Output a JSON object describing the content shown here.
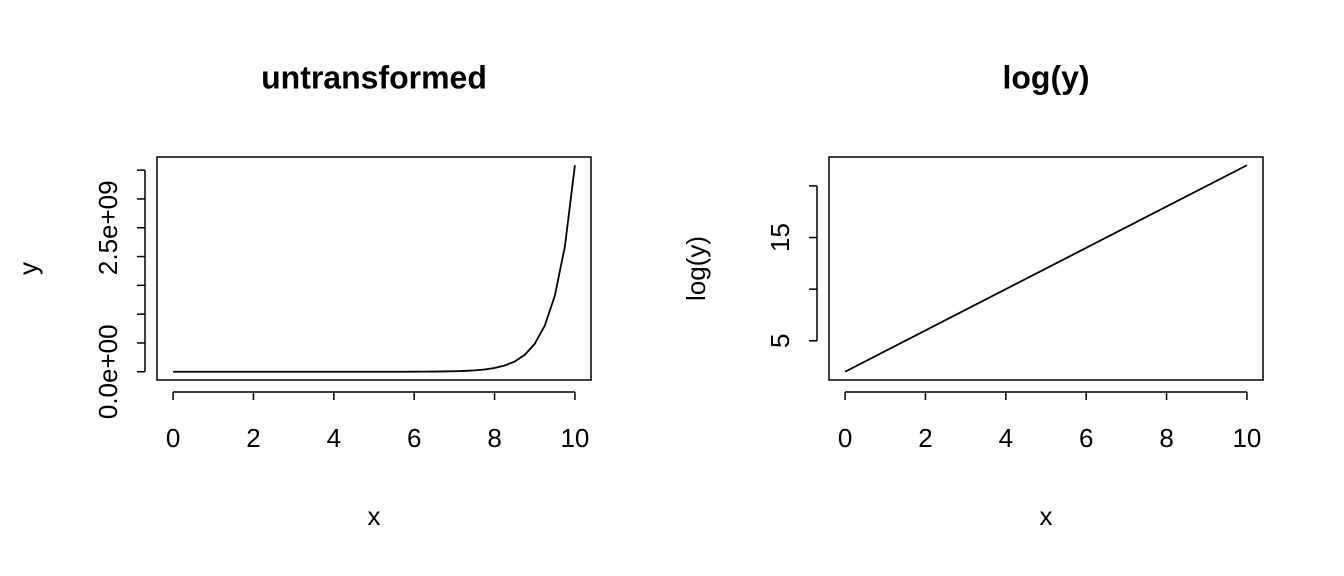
{
  "chart_data": [
    {
      "type": "line",
      "title": "untransformed",
      "xlabel": "x",
      "ylabel": "y",
      "color": "#000000",
      "x": [
        0,
        0.25,
        0.5,
        0.75,
        1,
        1.25,
        1.5,
        1.75,
        2,
        2.25,
        2.5,
        2.75,
        3,
        3.25,
        3.5,
        3.75,
        4,
        4.25,
        4.5,
        4.75,
        5,
        5.25,
        5.5,
        5.75,
        6,
        6.25,
        6.5,
        6.75,
        7,
        7.25,
        7.5,
        7.75,
        8,
        8.25,
        8.5,
        8.75,
        9,
        9.25,
        9.5,
        9.75,
        10
      ],
      "values": [
        7.389,
        12.18,
        20.09,
        33.12,
        54.6,
        90.02,
        148.4,
        244.7,
        403.4,
        665.1,
        1096.6,
        1808,
        2981,
        4915,
        8103,
        13360,
        22026,
        36316,
        59874,
        98716,
        162755,
        268337,
        442413,
        729416,
        1202604,
        1982759,
        3269017,
        5389698,
        8886111,
        14650719,
        24154953,
        39824784,
        65659969,
        108254988,
        177482301,
        292619779,
        485165195,
        799902177,
        1318815734,
        2174359553,
        3584912846
      ],
      "xlim": [
        -0.4,
        10.4
      ],
      "ylim": [
        -143000000,
        3728000000
      ],
      "xticks": [
        0,
        2,
        4,
        6,
        8,
        10
      ],
      "yticks": [
        {
          "value": 0,
          "label": "0.0e+00"
        },
        {
          "value": 500000000,
          "label": null
        },
        {
          "value": 1000000000,
          "label": null
        },
        {
          "value": 1500000000,
          "label": null
        },
        {
          "value": 2000000000,
          "label": null
        },
        {
          "value": 2500000000,
          "label": "2.5e+09"
        },
        {
          "value": 3000000000,
          "label": null
        },
        {
          "value": 3500000000,
          "label": null
        }
      ]
    },
    {
      "type": "line",
      "title": "log(y)",
      "xlabel": "x",
      "ylabel": "log(y)",
      "color": "#000000",
      "x": [
        0,
        10
      ],
      "values": [
        2,
        22
      ],
      "xlim": [
        -0.4,
        10.4
      ],
      "ylim": [
        1.2,
        22.8
      ],
      "xticks": [
        0,
        2,
        4,
        6,
        8,
        10
      ],
      "yticks": [
        5,
        {
          "value": 10,
          "label": null
        },
        15,
        {
          "value": 20,
          "label": null
        }
      ]
    }
  ]
}
